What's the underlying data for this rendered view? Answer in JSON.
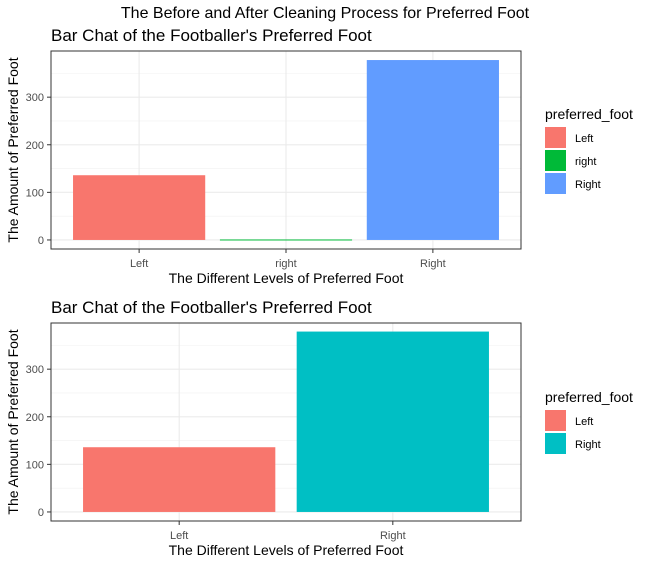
{
  "figure_title": "The Before and After Cleaning Process for Preferred Foot",
  "chart_data": [
    {
      "type": "bar",
      "title": "Bar Chat of the Footballer's Preferred Foot",
      "xlabel": "The Different Levels of Preferred Foot",
      "ylabel": "The Amount of Preferred Foot",
      "categories": [
        "Left",
        "right",
        "Right"
      ],
      "values": [
        136,
        1,
        378
      ],
      "colors": [
        "#F8766D",
        "#00BA38",
        "#619CFF"
      ],
      "ylim": [
        -19,
        397
      ],
      "yticks": [
        0,
        100,
        200,
        300
      ],
      "grid": true,
      "legend": {
        "title": "preferred_foot",
        "position": "right",
        "entries": [
          "Left",
          "right",
          "Right"
        ]
      }
    },
    {
      "type": "bar",
      "title": "Bar Chat of the Footballer's Preferred Foot",
      "xlabel": "The Different Levels of Preferred Foot",
      "ylabel": "The Amount of Preferred Foot",
      "categories": [
        "Left",
        "Right"
      ],
      "values": [
        136,
        379
      ],
      "colors": [
        "#F8766D",
        "#00BFC4"
      ],
      "ylim": [
        -19,
        397
      ],
      "yticks": [
        0,
        100,
        200,
        300
      ],
      "grid": true,
      "legend": {
        "title": "preferred_foot",
        "position": "right",
        "entries": [
          "Left",
          "Right"
        ]
      }
    }
  ]
}
